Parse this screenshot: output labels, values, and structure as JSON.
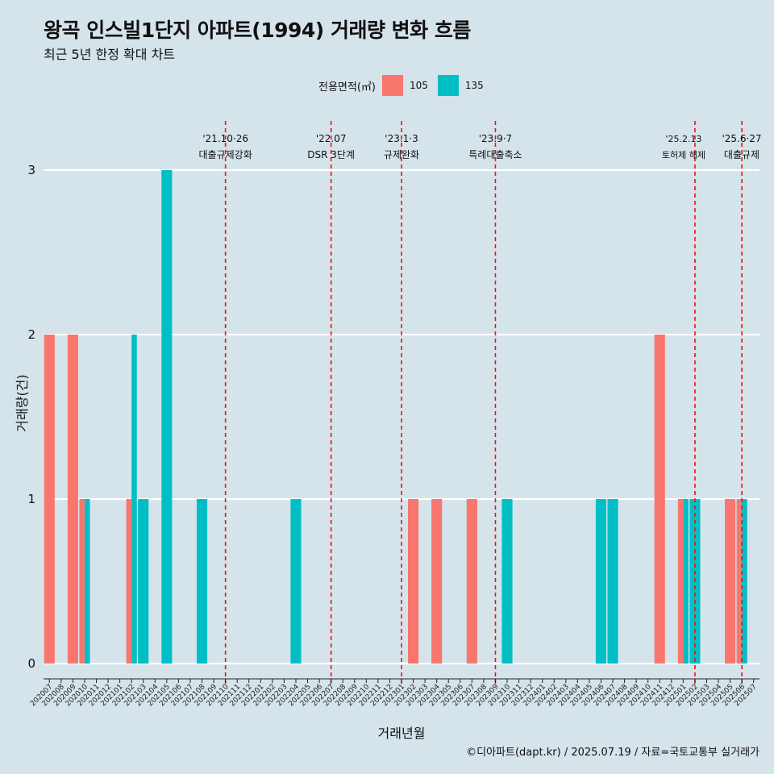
{
  "header": {
    "title": "왕곡 인스빌1단지 아파트(1994) 거래량 변화 흐름",
    "subtitle": "최근 5년 한정 확대 차트"
  },
  "legend": {
    "title": "전용면적(㎡)",
    "items": [
      {
        "label": "105",
        "color": "#f8766d"
      },
      {
        "label": "135",
        "color": "#00bfc4"
      }
    ]
  },
  "caption": "©디아파트(dapt.kr) / 2025.07.19 / 자료=국토교통부 실거래가",
  "chart_data": {
    "type": "bar",
    "xlabel": "거래년월",
    "ylabel": "거래량(건)",
    "ylim": [
      0,
      3
    ],
    "yticks": [
      0,
      1,
      2,
      3
    ],
    "grid": true,
    "legend_position": "top",
    "categories": [
      "202007",
      "202008",
      "202009",
      "202010",
      "202011",
      "202012",
      "202101",
      "202102",
      "202103",
      "202104",
      "202105",
      "202106",
      "202107",
      "202108",
      "202109",
      "202110",
      "202111",
      "202112",
      "202201",
      "202202",
      "202203",
      "202204",
      "202205",
      "202206",
      "202207",
      "202208",
      "202209",
      "202210",
      "202211",
      "202212",
      "202301",
      "202302",
      "202303",
      "202304",
      "202305",
      "202306",
      "202307",
      "202308",
      "202309",
      "202310",
      "202311",
      "202312",
      "202401",
      "202402",
      "202403",
      "202404",
      "202405",
      "202406",
      "202407",
      "202408",
      "202409",
      "202410",
      "202411",
      "202412",
      "202501",
      "202502",
      "202503",
      "202504",
      "202505",
      "202506",
      "202507"
    ],
    "series": [
      {
        "name": "105",
        "color": "#f8766d",
        "values": {
          "202007": 2,
          "202009": 2,
          "202010": 1,
          "202102": 1,
          "202302": 1,
          "202304": 1,
          "202307": 1,
          "202411": 2,
          "202501": 1,
          "202505": 1,
          "202506": 1
        }
      },
      {
        "name": "135",
        "color": "#00bfc4",
        "values": {
          "202010": 1,
          "202102": 2,
          "202103": 1,
          "202105": 3,
          "202108": 1,
          "202204": 1,
          "202310": 1,
          "202406": 1,
          "202407": 1,
          "202501": 1,
          "202502": 1,
          "202506": 1
        }
      }
    ],
    "annotations": [
      {
        "x": "202110",
        "date": "'21.10·26",
        "label": "대출규제강화"
      },
      {
        "x": "202207",
        "date": "'22.07",
        "label": "DSR 3단계"
      },
      {
        "x": "202301",
        "date": "'23.1·3",
        "label": "규제완화"
      },
      {
        "x": "202309",
        "date": "'23.9·7",
        "label": "특례대출축소"
      },
      {
        "x": "202502",
        "date": "'25.2.13",
        "label": "토허제 해제"
      },
      {
        "x": "202506",
        "date": "'25.6·27",
        "label": "대출규제"
      }
    ]
  }
}
